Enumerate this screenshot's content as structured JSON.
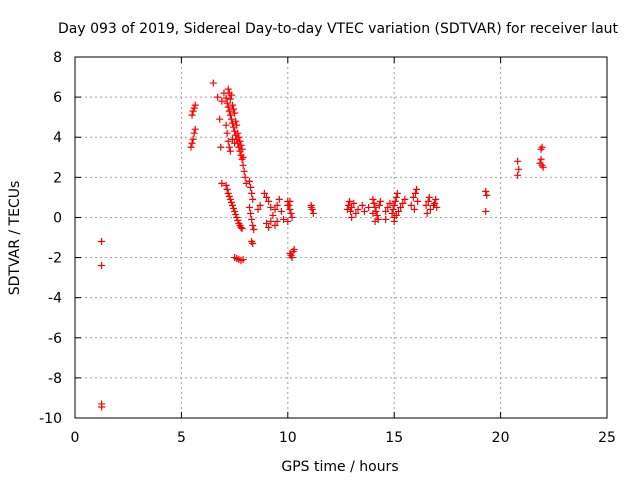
{
  "chart_data": {
    "type": "scatter",
    "title": "Day 093 of 2019, Sidereal Day-to-day VTEC variation (SDTVAR) for receiver laut",
    "xlabel": "GPS time / hours",
    "ylabel": "SDTVAR / TECUs",
    "xlim": [
      0,
      25
    ],
    "ylim": [
      -10,
      8
    ],
    "xticks": [
      0,
      5,
      10,
      15,
      20,
      25
    ],
    "yticks": [
      -10,
      -8,
      -6,
      -4,
      -2,
      0,
      2,
      4,
      6,
      8
    ],
    "grid": true,
    "marker": "+",
    "color": "#ff0000",
    "series": [
      {
        "name": "SDTVAR",
        "points": [
          [
            1.25,
            -1.2
          ],
          [
            1.25,
            -2.4
          ],
          [
            1.25,
            -9.3
          ],
          [
            1.25,
            -9.45
          ],
          [
            5.45,
            3.5
          ],
          [
            5.5,
            3.7
          ],
          [
            5.55,
            3.9
          ],
          [
            5.6,
            4.2
          ],
          [
            5.65,
            4.4
          ],
          [
            5.5,
            5.1
          ],
          [
            5.55,
            5.3
          ],
          [
            5.6,
            5.45
          ],
          [
            5.65,
            5.6
          ],
          [
            6.5,
            6.7
          ],
          [
            6.8,
            4.9
          ],
          [
            6.85,
            3.5
          ],
          [
            6.9,
            1.7
          ],
          [
            6.7,
            6.0
          ],
          [
            6.9,
            5.8
          ],
          [
            7.0,
            6.2
          ],
          [
            7.1,
            5.95
          ],
          [
            7.15,
            5.7
          ],
          [
            7.2,
            5.5
          ],
          [
            7.25,
            5.3
          ],
          [
            7.3,
            5.1
          ],
          [
            7.35,
            4.9
          ],
          [
            7.4,
            4.7
          ],
          [
            7.45,
            4.5
          ],
          [
            7.5,
            4.3
          ],
          [
            7.55,
            4.1
          ],
          [
            7.6,
            3.9
          ],
          [
            7.65,
            3.7
          ],
          [
            7.7,
            3.5
          ],
          [
            7.75,
            3.3
          ],
          [
            7.8,
            3.1
          ],
          [
            7.85,
            2.9
          ],
          [
            7.9,
            2.6
          ],
          [
            7.95,
            2.3
          ],
          [
            8.0,
            2.0
          ],
          [
            8.05,
            1.7
          ],
          [
            7.2,
            6.4
          ],
          [
            7.25,
            6.2
          ],
          [
            7.3,
            5.9
          ],
          [
            7.35,
            6.1
          ],
          [
            7.4,
            5.6
          ],
          [
            7.45,
            5.4
          ],
          [
            7.5,
            5.2
          ],
          [
            7.55,
            4.8
          ],
          [
            7.6,
            4.6
          ],
          [
            7.65,
            4.2
          ],
          [
            7.7,
            4.0
          ],
          [
            7.75,
            3.8
          ],
          [
            7.8,
            3.6
          ],
          [
            7.85,
            3.4
          ],
          [
            7.9,
            3.0
          ],
          [
            7.1,
            4.6
          ],
          [
            7.15,
            4.2
          ],
          [
            7.2,
            3.8
          ],
          [
            7.25,
            3.5
          ],
          [
            7.3,
            3.3
          ],
          [
            7.4,
            3.9
          ],
          [
            7.5,
            3.7
          ],
          [
            7.1,
            1.6
          ],
          [
            7.15,
            1.4
          ],
          [
            7.2,
            1.2
          ],
          [
            7.25,
            1.05
          ],
          [
            7.3,
            0.9
          ],
          [
            7.35,
            0.75
          ],
          [
            7.4,
            0.6
          ],
          [
            7.45,
            0.45
          ],
          [
            7.5,
            0.3
          ],
          [
            7.55,
            0.15
          ],
          [
            7.6,
            0.0
          ],
          [
            7.65,
            -0.15
          ],
          [
            7.7,
            -0.3
          ],
          [
            7.75,
            -0.4
          ],
          [
            7.8,
            -0.5
          ],
          [
            7.85,
            -0.55
          ],
          [
            7.5,
            -2.0
          ],
          [
            7.6,
            -2.05
          ],
          [
            7.7,
            -2.1
          ],
          [
            7.8,
            -2.15
          ],
          [
            7.9,
            -2.1
          ],
          [
            8.2,
            1.8
          ],
          [
            8.25,
            1.5
          ],
          [
            8.3,
            1.2
          ],
          [
            8.35,
            0.9
          ],
          [
            8.2,
            0.5
          ],
          [
            8.25,
            0.2
          ],
          [
            8.3,
            -0.1
          ],
          [
            8.35,
            -0.4
          ],
          [
            8.4,
            -0.6
          ],
          [
            8.3,
            -1.2
          ],
          [
            8.35,
            -1.3
          ],
          [
            8.6,
            0.4
          ],
          [
            8.7,
            0.6
          ],
          [
            8.9,
            1.2
          ],
          [
            9.0,
            1.0
          ],
          [
            9.1,
            0.8
          ],
          [
            9.2,
            0.5
          ],
          [
            9.0,
            -0.3
          ],
          [
            9.1,
            -0.5
          ],
          [
            9.2,
            -0.2
          ],
          [
            9.3,
            0.1
          ],
          [
            9.4,
            0.4
          ],
          [
            9.5,
            0.6
          ],
          [
            9.6,
            0.9
          ],
          [
            9.7,
            0.3
          ],
          [
            9.8,
            -0.1
          ],
          [
            9.4,
            -0.4
          ],
          [
            9.5,
            -0.2
          ],
          [
            10.0,
            0.8
          ],
          [
            10.05,
            0.6
          ],
          [
            10.1,
            0.4
          ],
          [
            10.15,
            0.2
          ],
          [
            10.2,
            0.0
          ],
          [
            10.0,
            -0.2
          ],
          [
            10.1,
            -1.8
          ],
          [
            10.15,
            -1.9
          ],
          [
            10.2,
            -2.0
          ],
          [
            10.25,
            -1.7
          ],
          [
            10.3,
            -1.6
          ],
          [
            10.0,
            0.6
          ],
          [
            10.1,
            0.8
          ],
          [
            11.1,
            0.6
          ],
          [
            11.15,
            0.4
          ],
          [
            11.2,
            0.2
          ],
          [
            11.1,
            0.5
          ],
          [
            12.8,
            0.4
          ],
          [
            12.85,
            0.6
          ],
          [
            12.9,
            0.8
          ],
          [
            12.95,
            0.3
          ],
          [
            13.0,
            0.5
          ],
          [
            13.1,
            0.7
          ],
          [
            13.2,
            0.2
          ],
          [
            13.3,
            0.4
          ],
          [
            13.5,
            0.6
          ],
          [
            13.6,
            0.3
          ],
          [
            13.8,
            0.5
          ],
          [
            13.0,
            0.0
          ],
          [
            14.0,
            0.9
          ],
          [
            14.05,
            0.7
          ],
          [
            14.1,
            0.5
          ],
          [
            14.15,
            0.3
          ],
          [
            14.2,
            0.1
          ],
          [
            14.25,
            -0.1
          ],
          [
            14.3,
            0.6
          ],
          [
            14.35,
            0.8
          ],
          [
            14.0,
            0.2
          ],
          [
            14.1,
            -0.2
          ],
          [
            14.6,
            0.3
          ],
          [
            14.7,
            0.5
          ],
          [
            14.8,
            0.7
          ],
          [
            14.9,
            0.2
          ],
          [
            14.95,
            0.4
          ],
          [
            15.0,
            0.6
          ],
          [
            15.05,
            0.8
          ],
          [
            15.1,
            1.0
          ],
          [
            15.15,
            1.2
          ],
          [
            15.0,
            0.0
          ],
          [
            15.1,
            0.1
          ],
          [
            15.2,
            0.3
          ],
          [
            15.3,
            0.5
          ],
          [
            15.4,
            0.7
          ],
          [
            15.5,
            0.9
          ],
          [
            14.6,
            -0.1
          ],
          [
            15.0,
            -0.2
          ],
          [
            15.9,
            1.0
          ],
          [
            16.0,
            1.2
          ],
          [
            16.1,
            0.8
          ],
          [
            15.8,
            0.6
          ],
          [
            15.95,
            0.4
          ],
          [
            16.05,
            1.4
          ],
          [
            16.5,
            0.6
          ],
          [
            16.6,
            0.8
          ],
          [
            16.7,
            0.4
          ],
          [
            16.55,
            0.2
          ],
          [
            16.65,
            1.0
          ],
          [
            16.9,
            0.7
          ],
          [
            16.95,
            0.9
          ],
          [
            17.0,
            0.5
          ],
          [
            16.85,
            0.6
          ],
          [
            19.3,
            1.3
          ],
          [
            19.35,
            1.1
          ],
          [
            19.3,
            0.3
          ],
          [
            20.8,
            2.8
          ],
          [
            20.85,
            2.4
          ],
          [
            20.8,
            2.1
          ],
          [
            21.9,
            3.4
          ],
          [
            21.95,
            3.5
          ],
          [
            21.9,
            2.9
          ],
          [
            21.95,
            2.6
          ],
          [
            22.0,
            2.5
          ],
          [
            21.85,
            2.7
          ]
        ]
      }
    ]
  }
}
